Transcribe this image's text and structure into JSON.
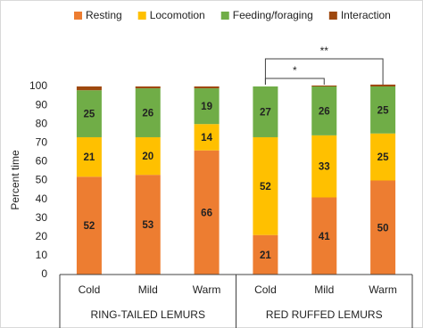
{
  "chart_data": {
    "type": "stacked_bar",
    "y_label": "Percent time",
    "categories": [
      "Cold",
      "Mild",
      "Warm",
      "Cold",
      "Mild",
      "Warm"
    ],
    "groups": [
      {
        "label": "RING-TAILED LEMURS",
        "size": 3
      },
      {
        "label": "RED RUFFED LEMURS",
        "size": 3
      }
    ],
    "series": [
      {
        "name": "Resting",
        "color": "#ed7d31",
        "data_labels": true,
        "values": [
          52,
          53,
          66,
          21,
          41,
          50
        ]
      },
      {
        "name": "Locomotion",
        "color": "#ffc000",
        "data_labels": true,
        "values": [
          21,
          20,
          14,
          52,
          33,
          25
        ]
      },
      {
        "name": "Feeding/foraging",
        "color": "#70ad47",
        "data_labels": true,
        "values": [
          25,
          26,
          19,
          27,
          26,
          25
        ]
      },
      {
        "name": "Interaction",
        "color": "#9e480e",
        "data_labels": false,
        "values": [
          2,
          1,
          1,
          0,
          0.5,
          1
        ]
      }
    ],
    "ylim": [
      0,
      100
    ],
    "yticks": [
      0,
      10,
      20,
      30,
      40,
      50,
      60,
      70,
      80,
      90,
      100
    ],
    "grid": false,
    "legend": "top",
    "annotations": [
      {
        "text": "*",
        "from": 3,
        "to": 4
      },
      {
        "text": "**",
        "from": 3,
        "to": 5
      }
    ]
  }
}
